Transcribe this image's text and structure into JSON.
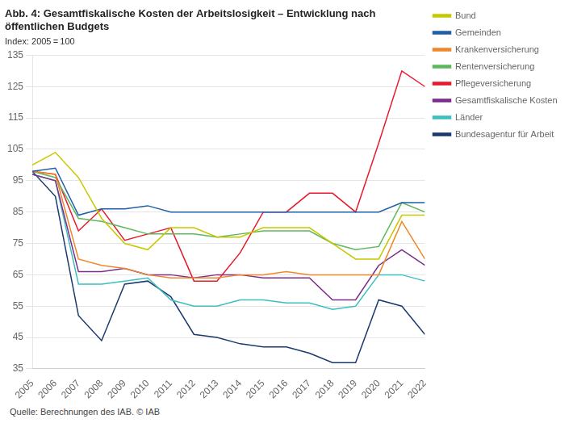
{
  "chart_data": {
    "type": "line",
    "title": "Abb. 4: Gesamtfiskalische Kosten der Arbeitslosigkeit – Entwicklung nach\nöffentlichen Budgets",
    "subtitle": "Index: 2005 = 100",
    "annotations": [
      "Quelle: Berechnungen des IAB. © IAB"
    ],
    "x": [
      2005,
      2006,
      2007,
      2008,
      2009,
      2010,
      2011,
      2012,
      2013,
      2014,
      2015,
      2016,
      2017,
      2018,
      2019,
      2020,
      2021,
      2022
    ],
    "series": [
      {
        "name": "Bund",
        "color": "#c8c800",
        "values": [
          100,
          104,
          96,
          83,
          75,
          73,
          80,
          80,
          77,
          77,
          80,
          80,
          80,
          75,
          70,
          70,
          84,
          84
        ]
      },
      {
        "name": "Gemeinden",
        "color": "#1f5ea8",
        "values": [
          98,
          99,
          84,
          86,
          86,
          87,
          85,
          85,
          85,
          85,
          85,
          85,
          85,
          85,
          85,
          85,
          88,
          88
        ]
      },
      {
        "name": "Krankenversicherung",
        "color": "#f0872a",
        "values": [
          98,
          97,
          70,
          68,
          67,
          65,
          64,
          64,
          64,
          65,
          65,
          66,
          65,
          65,
          65,
          65,
          82,
          70
        ]
      },
      {
        "name": "Rentenversicherung",
        "color": "#5cb85c",
        "values": [
          98,
          96,
          83,
          82,
          80,
          78,
          78,
          78,
          77,
          78,
          79,
          79,
          79,
          75,
          73,
          74,
          88,
          85
        ]
      },
      {
        "name": "Pflegeversicherung",
        "color": "#e8192c",
        "values": [
          98,
          97,
          79,
          86,
          76,
          78,
          80,
          63,
          63,
          72,
          85,
          85,
          91,
          91,
          85,
          107,
          130,
          125
        ]
      },
      {
        "name": "Gesamtfiskalische Kosten",
        "color": "#7b2d8b",
        "values": [
          97,
          95,
          66,
          66,
          67,
          65,
          65,
          64,
          65,
          65,
          64,
          64,
          64,
          57,
          57,
          68,
          73,
          68
        ]
      },
      {
        "name": "Länder",
        "color": "#3dbfbf",
        "values": [
          97,
          95,
          62,
          62,
          63,
          64,
          57,
          55,
          55,
          57,
          57,
          56,
          56,
          54,
          55,
          65,
          65,
          63
        ]
      },
      {
        "name": "Bundesagentur für Arbeit",
        "color": "#1a3a6e",
        "values": [
          98,
          90,
          52,
          44,
          62,
          63,
          58,
          46,
          45,
          43,
          42,
          42,
          40,
          37,
          37,
          57,
          55,
          46
        ]
      }
    ],
    "xlim": [
      2005,
      2022
    ],
    "xticks": [
      2005,
      2006,
      2007,
      2008,
      2009,
      2010,
      2011,
      2012,
      2013,
      2014,
      2015,
      2016,
      2017,
      2018,
      2019,
      2020,
      2021,
      2022
    ],
    "ylim": [
      35,
      135
    ],
    "yticks": [
      35,
      45,
      55,
      65,
      75,
      85,
      95,
      105,
      115,
      125,
      135
    ],
    "grid": true,
    "legend": "right"
  }
}
